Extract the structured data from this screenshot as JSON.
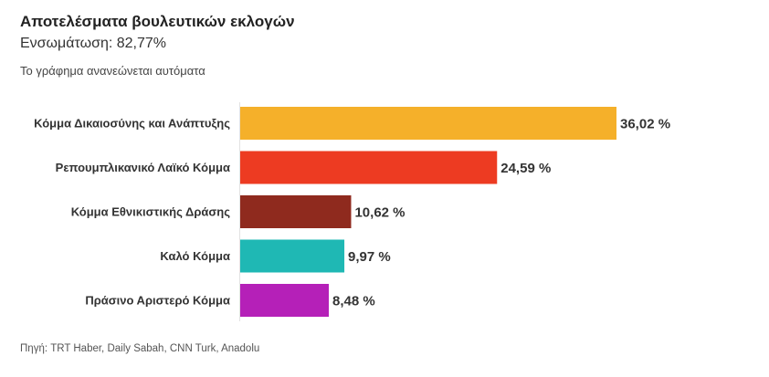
{
  "header": {
    "title": "Αποτελέσματα βουλευτικών εκλογών",
    "subtitle": "Ενσωμάτωση: 82,77%",
    "note": "Το γράφημα ανανεώνεται αυτόματα"
  },
  "footer": {
    "source": "Πηγή: TRT Haber, Daily Sabah, CNN Turk, Anadolu"
  },
  "chart_data": {
    "type": "bar",
    "orientation": "horizontal",
    "title": "Αποτελέσματα βουλευτικών εκλογών",
    "subtitle": "Ενσωμάτωση: 82,77%",
    "categories": [
      "Κόμμα Δικαιοσύνης και Ανάπτυξης",
      "Ρεπουμπλικανικό Λαϊκό Κόμμα",
      "Κόμμα Εθνικιστικής Δράσης",
      "Καλό Κόμμα",
      "Πράσινο Αριστερό Κόμμα"
    ],
    "values": [
      36.02,
      24.59,
      10.62,
      9.97,
      8.48
    ],
    "value_labels": [
      "36,02 %",
      "24,59 %",
      "10,62 %",
      "9,97 %",
      "8,48 %"
    ],
    "colors": [
      "#f5b02a",
      "#ed3b22",
      "#8f2a1e",
      "#1fb8b4",
      "#b520b8"
    ],
    "xlim": [
      0,
      36.02
    ],
    "xlabel": "",
    "ylabel": "",
    "grid": false,
    "legend": "none"
  }
}
